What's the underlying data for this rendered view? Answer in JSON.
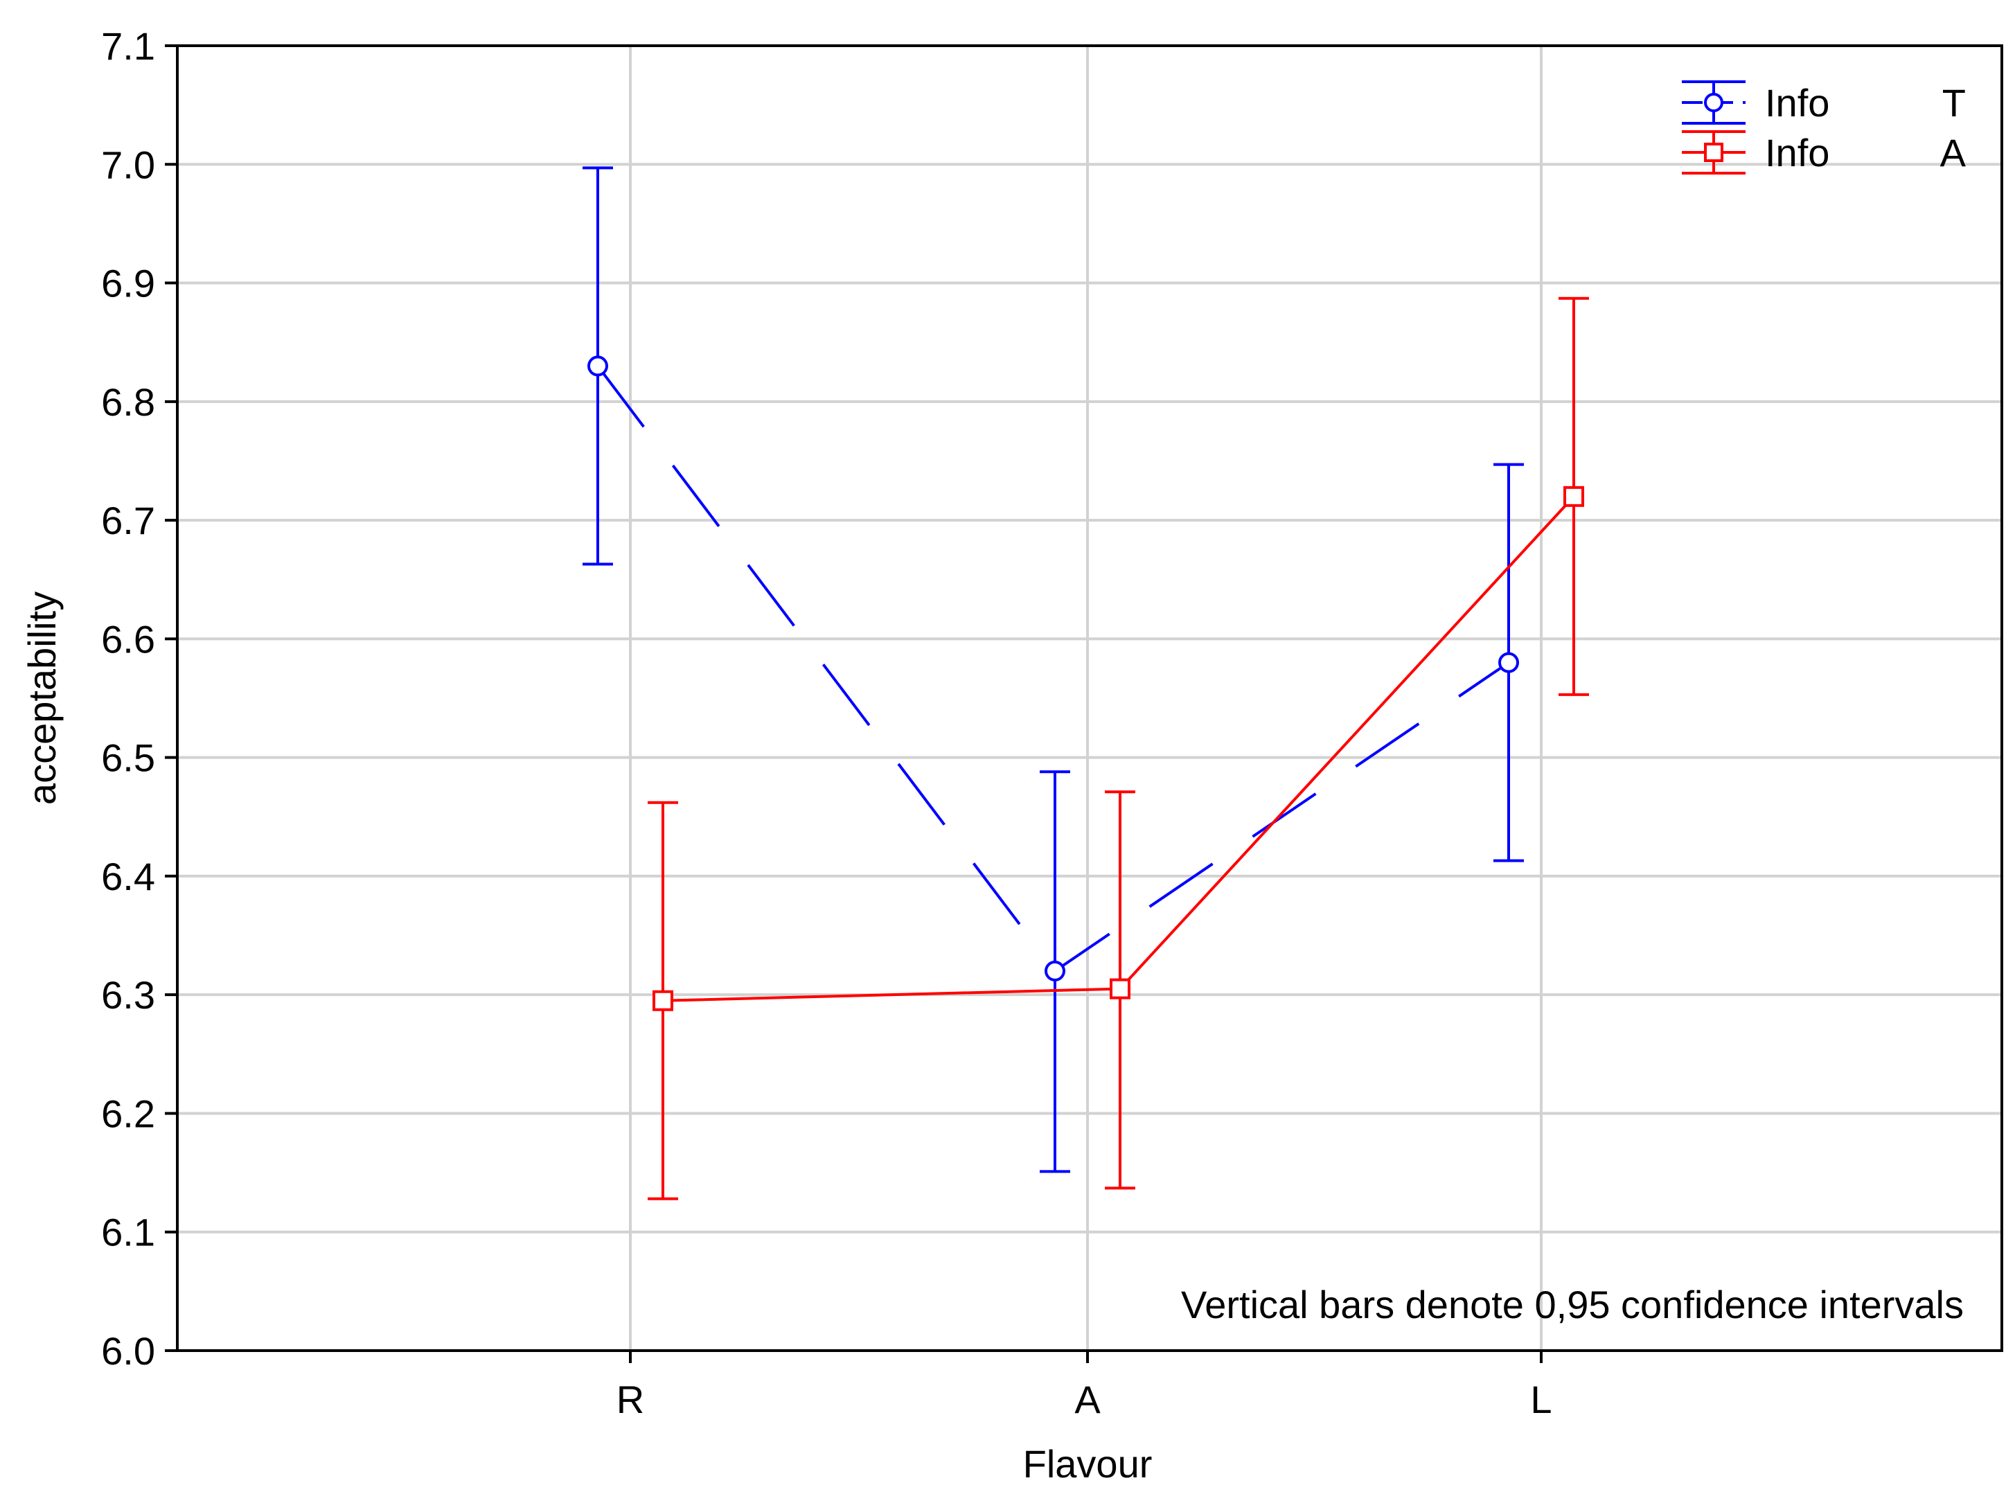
{
  "chart_data": {
    "type": "line",
    "xlabel": "Flavour",
    "ylabel": "acceptability",
    "categories": [
      "R",
      "A",
      "L"
    ],
    "ylim": [
      6.0,
      7.1
    ],
    "yticks": [
      "6.0",
      "6.1",
      "6.2",
      "6.3",
      "6.4",
      "6.5",
      "6.6",
      "6.7",
      "6.8",
      "6.9",
      "7.0",
      "7.1"
    ],
    "grid": true,
    "legend_position": "top-right",
    "annotation": "Vertical bars denote 0,95 confidence intervals",
    "series": [
      {
        "name": "Info",
        "level": "T",
        "color": "#0000ff",
        "marker": "circle",
        "line_style": "dashed",
        "values": [
          6.83,
          6.32,
          6.58
        ],
        "ci_lower": [
          6.663,
          6.151,
          6.413
        ],
        "ci_upper": [
          6.997,
          6.488,
          6.747
        ]
      },
      {
        "name": "Info",
        "level": "A",
        "color": "#ff0000",
        "marker": "square",
        "line_style": "solid",
        "values": [
          6.295,
          6.305,
          6.72
        ],
        "ci_lower": [
          6.128,
          6.137,
          6.553
        ],
        "ci_upper": [
          6.462,
          6.471,
          6.887
        ]
      }
    ]
  }
}
